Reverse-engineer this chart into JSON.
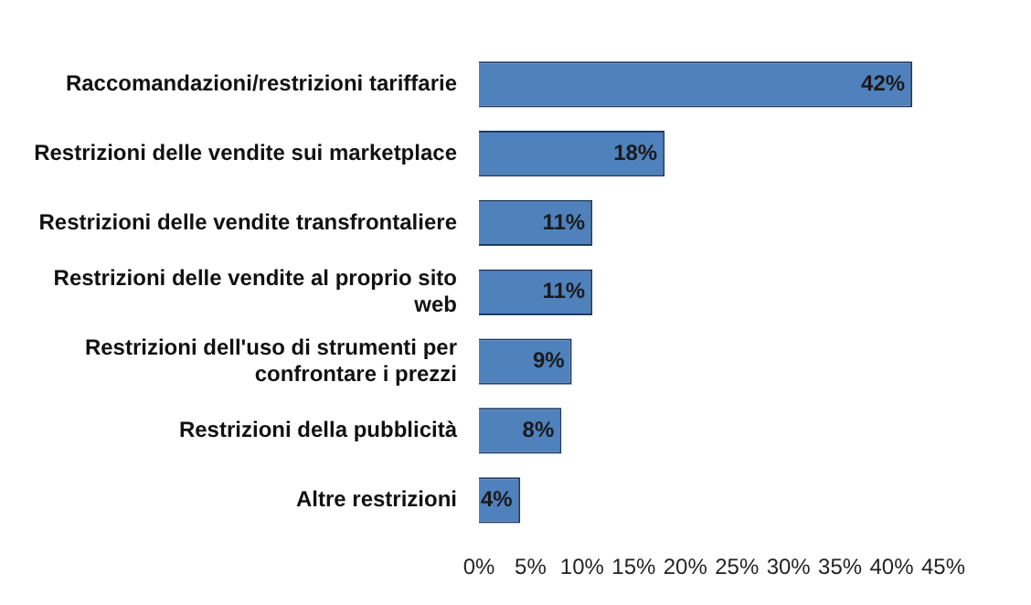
{
  "chart_data": {
    "type": "bar",
    "orientation": "horizontal",
    "categories": [
      "Raccomandazioni/restrizioni tariffarie",
      "Restrizioni delle vendite sui marketplace",
      "Restrizioni delle vendite transfrontaliere",
      "Restrizioni delle vendite al proprio sito web",
      "Restrizioni dell'uso di strumenti per confrontare i prezzi",
      "Restrizioni della pubblicità",
      "Altre restrizioni"
    ],
    "values": [
      42,
      18,
      11,
      11,
      9,
      8,
      4
    ],
    "value_labels": [
      "42%",
      "18%",
      "11%",
      "11%",
      "9%",
      "8%",
      "4%"
    ],
    "color": "#4f81bd",
    "xlim": [
      0,
      45
    ],
    "xticks": [
      {
        "value": 0,
        "label": "0%"
      },
      {
        "value": 5,
        "label": "5%"
      },
      {
        "value": 10,
        "label": "10%"
      },
      {
        "value": 15,
        "label": "15%"
      },
      {
        "value": 20,
        "label": "20%"
      },
      {
        "value": 25,
        "label": "25%"
      },
      {
        "value": 30,
        "label": "30%"
      },
      {
        "value": 35,
        "label": "35%"
      },
      {
        "value": 40,
        "label": "40%"
      },
      {
        "value": 45,
        "label": "45%"
      }
    ],
    "grid": false,
    "legend": false
  }
}
